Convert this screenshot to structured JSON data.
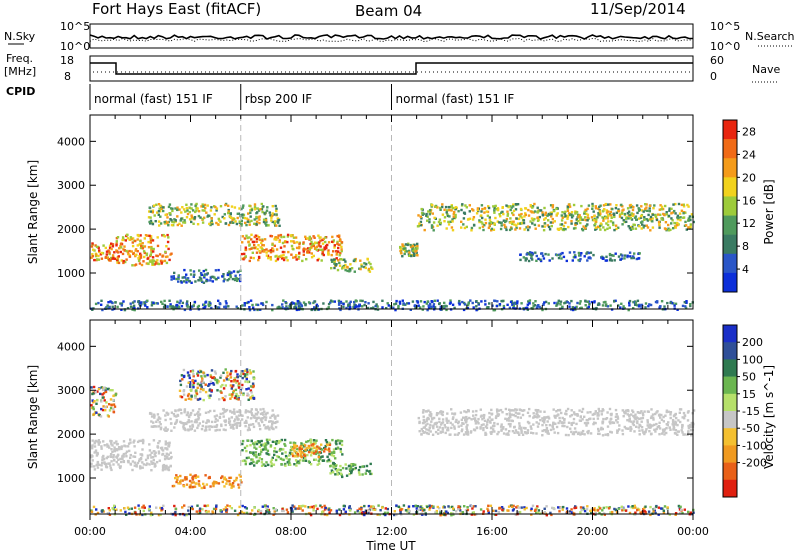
{
  "header": {
    "station": "Fort Hays East (fitACF)",
    "beam": "Beam 04",
    "date": "11/Sep/2014"
  },
  "top_panels": {
    "nsky_label": "N.Sky",
    "nsearch_label": "N.Search",
    "noise_ticks": [
      "10^5",
      "10^0"
    ],
    "freq_label_top": "Freq.",
    "freq_label_unit": "[MHz]",
    "freq_ticks": [
      "18",
      "8"
    ],
    "nave_ticks": [
      "60",
      "0"
    ],
    "nave_label": "Nave",
    "cpid_label": "CPID",
    "cpid_segments": [
      {
        "start_hour": 0,
        "end_hour": 6,
        "label": "normal (fast) 151 IF"
      },
      {
        "start_hour": 6,
        "end_hour": 12,
        "label": "rbsp 200 IF"
      },
      {
        "start_hour": 12,
        "end_hour": 24,
        "label": "normal (fast) 151 IF"
      }
    ]
  },
  "x_axis": {
    "label": "Time UT",
    "ticks": [
      "00:00",
      "04:00",
      "08:00",
      "12:00",
      "16:00",
      "20:00",
      "00:00"
    ]
  },
  "colors": {
    "power_scale": [
      "#0c2fd9",
      "#2a56c8",
      "#3a7b62",
      "#4f9a5c",
      "#9dcb3a",
      "#f1d21d",
      "#f49b1a",
      "#f06a16",
      "#e8250f"
    ],
    "velocity_scale": [
      "#1a2fc8",
      "#2f4f98",
      "#2f7a50",
      "#6bb650",
      "#b6e06a",
      "#c6c6c6",
      "#f4c030",
      "#f09a20",
      "#e86018",
      "#e02010"
    ]
  },
  "chart_data": [
    {
      "type": "heatmap",
      "panel": "power",
      "title": "",
      "xlabel": "Time UT",
      "ylabel": "Slant Range [km]",
      "xlim": [
        0,
        24
      ],
      "ylim": [
        180,
        4600
      ],
      "y_ticks": [
        1000,
        2000,
        3000,
        4000
      ],
      "colorbar": {
        "label": "Power [dB]",
        "ticks": [
          4,
          8,
          12,
          16,
          20,
          24,
          28
        ],
        "range": [
          0,
          30
        ]
      },
      "echo_regions": [
        {
          "t0": 0.0,
          "t1": 1.0,
          "r0": 1300,
          "r1": 1700,
          "level": "high"
        },
        {
          "t0": 1.0,
          "t1": 3.2,
          "r0": 1200,
          "r1": 1900,
          "level": "high"
        },
        {
          "t0": 3.2,
          "t1": 6.0,
          "r0": 800,
          "r1": 1100,
          "level": "low"
        },
        {
          "t0": 2.3,
          "t1": 7.5,
          "r0": 2100,
          "r1": 2600,
          "level": "mid"
        },
        {
          "t0": 6.0,
          "t1": 10.0,
          "r0": 1300,
          "r1": 1900,
          "level": "high"
        },
        {
          "t0": 9.5,
          "t1": 11.2,
          "r0": 1050,
          "r1": 1350,
          "level": "mid"
        },
        {
          "t0": 12.3,
          "t1": 13.0,
          "r0": 1400,
          "r1": 1700,
          "level": "mid"
        },
        {
          "t0": 13.0,
          "t1": 24.0,
          "r0": 2000,
          "r1": 2600,
          "level": "mid"
        },
        {
          "t0": 17.0,
          "t1": 22.0,
          "r0": 1300,
          "r1": 1500,
          "level": "low"
        },
        {
          "t0": 0.0,
          "t1": 24.0,
          "r0": 180,
          "r1": 400,
          "level": "low"
        }
      ]
    },
    {
      "type": "heatmap",
      "panel": "velocity",
      "title": "",
      "xlabel": "Time UT",
      "ylabel": "Slant Range [km]",
      "xlim": [
        0,
        24
      ],
      "ylim": [
        180,
        4600
      ],
      "y_ticks": [
        1000,
        2000,
        3000,
        4000
      ],
      "colorbar": {
        "label": "Velocity [m s^-1]",
        "ticks": [
          200,
          100,
          50,
          15,
          -15,
          -50,
          -100,
          -200
        ],
        "range": [
          -250,
          250
        ]
      },
      "echo_regions": [
        {
          "t0": 0.0,
          "t1": 3.2,
          "r0": 1200,
          "r1": 1900,
          "level": "ground"
        },
        {
          "t0": 0.0,
          "t1": 1.0,
          "r0": 2400,
          "r1": 3100,
          "level": "mixed"
        },
        {
          "t0": 3.2,
          "t1": 6.0,
          "r0": 800,
          "r1": 1100,
          "level": "negative"
        },
        {
          "t0": 3.5,
          "t1": 6.5,
          "r0": 2800,
          "r1": 3500,
          "level": "strong"
        },
        {
          "t0": 2.3,
          "t1": 7.5,
          "r0": 2100,
          "r1": 2600,
          "level": "ground"
        },
        {
          "t0": 6.0,
          "t1": 10.0,
          "r0": 1300,
          "r1": 1900,
          "level": "positive"
        },
        {
          "t0": 8.0,
          "t1": 9.5,
          "r0": 1500,
          "r1": 1800,
          "level": "negative"
        },
        {
          "t0": 9.5,
          "t1": 11.2,
          "r0": 1050,
          "r1": 1350,
          "level": "positive"
        },
        {
          "t0": 13.0,
          "t1": 24.0,
          "r0": 2000,
          "r1": 2600,
          "level": "ground"
        },
        {
          "t0": 0.0,
          "t1": 24.0,
          "r0": 180,
          "r1": 400,
          "level": "mixed"
        }
      ]
    }
  ]
}
